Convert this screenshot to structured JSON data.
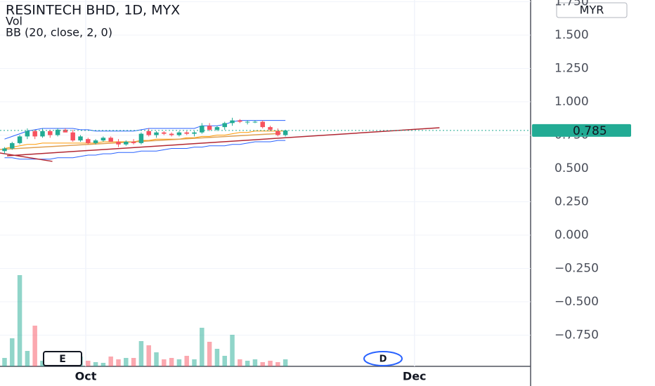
{
  "chart_data": {
    "type": "candlestick",
    "title": "RESINTECH BHD, 1D, MYX",
    "indicators": [
      "Vol",
      "BB (20, close, 2, 0)"
    ],
    "currency": "MYR",
    "events": [
      "E",
      "D"
    ],
    "x": [
      0,
      1,
      2,
      3,
      4,
      5,
      6,
      7,
      8,
      9,
      10,
      11,
      12,
      13,
      14,
      15,
      16,
      17,
      18,
      19,
      20,
      21,
      22,
      23,
      24,
      25,
      26,
      27,
      28,
      29,
      30,
      31,
      32,
      33,
      34,
      35,
      36,
      37
    ],
    "xlim": [
      -0.6,
      69.3
    ],
    "xticks": [
      {
        "value": 10.7,
        "label": "Oct"
      },
      {
        "value": 54.0,
        "label": "Dec"
      }
    ],
    "ylim": [
      -0.984,
      1.763
    ],
    "yticks": [
      {
        "value": -0.75,
        "label": "−0.750"
      },
      {
        "value": -0.5,
        "label": "−0.500"
      },
      {
        "value": -0.25,
        "label": "−0.250"
      },
      {
        "value": 0,
        "label": "0.000"
      },
      {
        "value": 0.25,
        "label": "0.250"
      },
      {
        "value": 0.5,
        "label": "0.500"
      },
      {
        "value": 0.75,
        "label": "0.750"
      },
      {
        "value": 1.0,
        "label": "1.000"
      },
      {
        "value": 1.25,
        "label": "1.250"
      },
      {
        "value": 1.5,
        "label": "1.500"
      },
      {
        "value": 1.75,
        "label": "1.750"
      }
    ],
    "grid": true,
    "up_color": "#22ab94",
    "down_color": "#f7525f",
    "open": [
      0.63,
      0.65,
      0.69,
      0.74,
      0.78,
      0.74,
      0.78,
      0.75,
      0.79,
      0.77,
      0.71,
      0.72,
      0.69,
      0.71,
      0.73,
      0.7,
      0.68,
      0.7,
      0.69,
      0.78,
      0.75,
      0.77,
      0.76,
      0.75,
      0.77,
      0.76,
      0.77,
      0.82,
      0.79,
      0.81,
      0.84,
      0.86,
      0.85,
      0.85,
      0.85,
      0.81,
      0.78,
      0.75
    ],
    "high": [
      0.66,
      0.7,
      0.75,
      0.8,
      0.79,
      0.8,
      0.79,
      0.8,
      0.8,
      0.79,
      0.75,
      0.73,
      0.72,
      0.74,
      0.74,
      0.72,
      0.71,
      0.72,
      0.77,
      0.8,
      0.78,
      0.78,
      0.77,
      0.78,
      0.78,
      0.78,
      0.84,
      0.84,
      0.82,
      0.85,
      0.88,
      0.87,
      0.86,
      0.86,
      0.86,
      0.82,
      0.8,
      0.79
    ],
    "low": [
      0.61,
      0.64,
      0.68,
      0.72,
      0.72,
      0.73,
      0.73,
      0.74,
      0.77,
      0.7,
      0.7,
      0.68,
      0.68,
      0.7,
      0.7,
      0.66,
      0.67,
      0.68,
      0.68,
      0.74,
      0.73,
      0.75,
      0.74,
      0.74,
      0.75,
      0.74,
      0.76,
      0.78,
      0.78,
      0.79,
      0.82,
      0.84,
      0.83,
      0.84,
      0.8,
      0.78,
      0.74,
      0.74
    ],
    "close": [
      0.65,
      0.69,
      0.74,
      0.78,
      0.74,
      0.78,
      0.75,
      0.79,
      0.77,
      0.71,
      0.74,
      0.69,
      0.71,
      0.73,
      0.7,
      0.68,
      0.7,
      0.69,
      0.76,
      0.75,
      0.77,
      0.76,
      0.75,
      0.77,
      0.76,
      0.77,
      0.82,
      0.79,
      0.81,
      0.84,
      0.86,
      0.85,
      0.85,
      0.85,
      0.81,
      0.79,
      0.75,
      0.785
    ],
    "volume": [
      12,
      40,
      130,
      22,
      58,
      8,
      15,
      10,
      10,
      20,
      14,
      8,
      6,
      5,
      14,
      10,
      12,
      12,
      36,
      30,
      20,
      10,
      12,
      10,
      15,
      10,
      55,
      35,
      25,
      15,
      45,
      10,
      8,
      10,
      6,
      8,
      6,
      10
    ],
    "volume_ylim": [
      0,
      140
    ],
    "bands": [
      {
        "color": "#2962ff",
        "values": [
          0.72,
          0.74,
          0.76,
          0.78,
          0.79,
          0.8,
          0.8,
          0.8,
          0.8,
          0.8,
          0.79,
          0.79,
          0.78,
          0.78,
          0.78,
          0.78,
          0.78,
          0.78,
          0.79,
          0.8,
          0.8,
          0.8,
          0.8,
          0.8,
          0.8,
          0.8,
          0.82,
          0.82,
          0.82,
          0.83,
          0.85,
          0.86,
          0.86,
          0.86,
          0.86,
          0.86,
          0.86,
          0.86
        ]
      },
      {
        "color": "#ff9800",
        "values": [
          0.65,
          0.66,
          0.67,
          0.68,
          0.68,
          0.69,
          0.69,
          0.69,
          0.69,
          0.69,
          0.69,
          0.69,
          0.69,
          0.7,
          0.7,
          0.7,
          0.7,
          0.7,
          0.71,
          0.71,
          0.72,
          0.72,
          0.72,
          0.72,
          0.73,
          0.73,
          0.74,
          0.74,
          0.75,
          0.75,
          0.76,
          0.77,
          0.77,
          0.78,
          0.78,
          0.78,
          0.78,
          0.78
        ]
      },
      {
        "color": "#2962ff",
        "values": [
          0.58,
          0.58,
          0.57,
          0.57,
          0.57,
          0.57,
          0.57,
          0.58,
          0.58,
          0.58,
          0.59,
          0.6,
          0.6,
          0.61,
          0.61,
          0.62,
          0.62,
          0.62,
          0.63,
          0.63,
          0.63,
          0.64,
          0.65,
          0.65,
          0.65,
          0.66,
          0.66,
          0.67,
          0.67,
          0.67,
          0.68,
          0.68,
          0.69,
          0.7,
          0.7,
          0.7,
          0.71,
          0.71
        ]
      }
    ],
    "trendlines": [
      {
        "color": "#b22833",
        "x": [
          0.33,
          57.3
        ],
        "y": [
          0.595,
          0.805
        ]
      },
      {
        "color": "#b22833",
        "x": [
          -0.6,
          6.3
        ],
        "y": [
          0.616,
          0.553
        ]
      },
      {
        "color": "#e0a050",
        "x": [
          -0.6,
          36.4
        ],
        "y": [
          0.642,
          0.763
        ]
      }
    ]
  }
}
